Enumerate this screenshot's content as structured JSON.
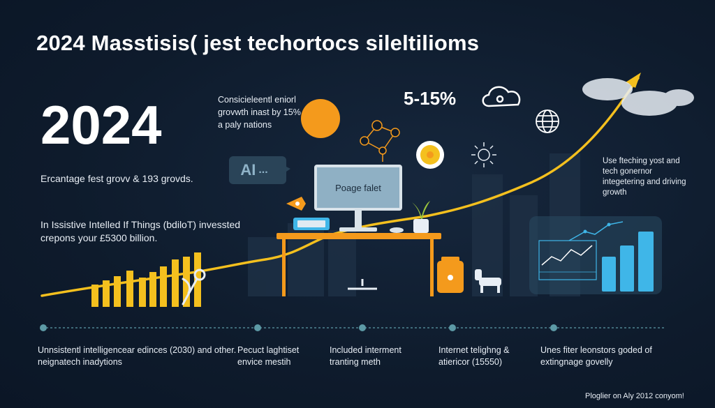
{
  "header": {
    "headline": "2024 Masstisis( jest techortocs sileltiliom​s"
  },
  "left": {
    "year": "2024",
    "subtitle": "Ercantage fest grovv & 193 grovds.",
    "paragraph": "In Issistive Intelled If Things (bdiloT) invessted crepons your £5300 billion."
  },
  "center": {
    "consideration": "Consicieleentl eniorl grovwth inast by 15% a paly nations",
    "ai_label": "AI",
    "ai_dots": "...",
    "monitor_text": "Poage falet",
    "percent_range": "5-15%"
  },
  "right": {
    "note": "Use fteching yost and tech gonernor integetering and driving growth"
  },
  "timeline": {
    "items": [
      {
        "label": "Unnsistentl intelligencear edinces (2030) and other. neignatech inadytions"
      },
      {
        "label": "Pecuct laghtiset envice mestih"
      },
      {
        "label": "Included interment tranting meth"
      },
      {
        "label": "Internet teligh​ng & atiericor (15550)"
      },
      {
        "label": "Unes fiter leonstors goded of extingnage govelly"
      }
    ]
  },
  "footer": {
    "credit": "Ploglier on Aly 2012 conyom!"
  },
  "colors": {
    "background": "#0e1b2c",
    "accent_yellow": "#f4c01e",
    "accent_orange": "#f49a1c",
    "accent_blue": "#3fb6e8",
    "timeline_dot": "#5d9aa6"
  },
  "icons": [
    "sun-icon",
    "cloud-icon",
    "globe-icon",
    "lightbulb-icon",
    "gear-icon",
    "network-icon",
    "plant-icon",
    "trash-can-icon",
    "robot-dog-icon",
    "wrench-icon"
  ]
}
